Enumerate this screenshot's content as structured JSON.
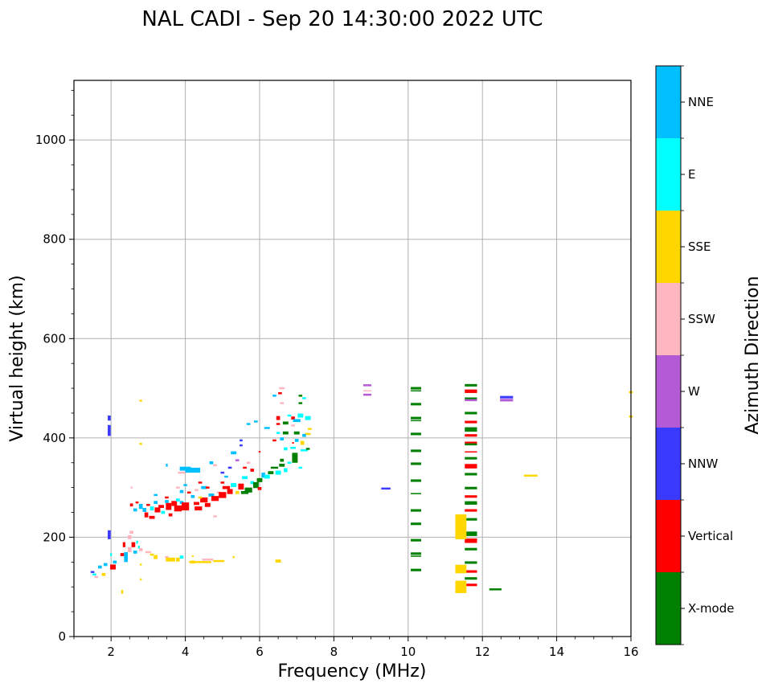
{
  "chart_data": {
    "type": "scatter",
    "title": "NAL CADI - Sep 20 14:30:00 2022 UTC",
    "xlabel": "Frequency (MHz)",
    "ylabel": "Virtual height (km)",
    "xlim": [
      1,
      16
    ],
    "ylim": [
      0,
      1120
    ],
    "xticks": [
      2,
      4,
      6,
      8,
      10,
      12,
      14,
      16
    ],
    "xtick_labels": [
      "2",
      "4",
      "6",
      "8",
      "10",
      "12",
      "14",
      "16"
    ],
    "yticks": [
      0,
      200,
      400,
      600,
      800,
      1000
    ],
    "ytick_labels": [
      "0",
      "200",
      "400",
      "600",
      "800",
      "1000"
    ],
    "grid": true,
    "colorbar": {
      "label": "Azimuth Direction",
      "categories": [
        "X-mode",
        "Vertical",
        "NNW",
        "W",
        "SSW",
        "SSE",
        "E",
        "NNE"
      ],
      "colors": [
        "#008000",
        "#ff0000",
        "#3a3aff",
        "#b55ad6",
        "#ffb6c1",
        "#ffd700",
        "#00ffff",
        "#00bfff"
      ]
    },
    "marks_format": "[frequency_MHz, virtual_height_km, category_index, freq_span_MHz, height_span_km]",
    "marks": [
      [
        1.5,
        130,
        2,
        0.1,
        4
      ],
      [
        1.55,
        125,
        6,
        0.1,
        4
      ],
      [
        1.6,
        120,
        4,
        0.1,
        4
      ],
      [
        1.7,
        140,
        7,
        0.1,
        6
      ],
      [
        1.8,
        125,
        5,
        0.1,
        6
      ],
      [
        1.85,
        145,
        7,
        0.1,
        6
      ],
      [
        2.05,
        140,
        1,
        0.15,
        10
      ],
      [
        2.1,
        150,
        7,
        0.1,
        6
      ],
      [
        2.0,
        165,
        6,
        0.05,
        6
      ],
      [
        1.95,
        205,
        2,
        0.08,
        18
      ],
      [
        1.95,
        415,
        2,
        0.08,
        22
      ],
      [
        1.95,
        440,
        2,
        0.08,
        10
      ],
      [
        2.35,
        185,
        1,
        0.07,
        10
      ],
      [
        2.3,
        165,
        1,
        0.1,
        6
      ],
      [
        2.4,
        160,
        7,
        0.1,
        20
      ],
      [
        2.5,
        175,
        4,
        0.1,
        10
      ],
      [
        2.5,
        200,
        4,
        0.1,
        8
      ],
      [
        2.55,
        210,
        4,
        0.1,
        6
      ],
      [
        2.6,
        185,
        1,
        0.1,
        10
      ],
      [
        2.65,
        170,
        7,
        0.1,
        6
      ],
      [
        2.7,
        190,
        6,
        0.05,
        6
      ],
      [
        2.75,
        180,
        6,
        0.05,
        6
      ],
      [
        2.8,
        175,
        4,
        0.1,
        6
      ],
      [
        2.3,
        90,
        5,
        0.05,
        8
      ],
      [
        2.8,
        115,
        5,
        0.05,
        4
      ],
      [
        2.8,
        145,
        5,
        0.05,
        4
      ],
      [
        2.8,
        475,
        5,
        0.07,
        4
      ],
      [
        2.8,
        388,
        5,
        0.07,
        4
      ],
      [
        2.55,
        300,
        4,
        0.05,
        4
      ],
      [
        3.0,
        170,
        4,
        0.15,
        4
      ],
      [
        3.1,
        165,
        5,
        0.1,
        4
      ],
      [
        3.2,
        160,
        5,
        0.1,
        8
      ],
      [
        3.5,
        160,
        4,
        0.1,
        4
      ],
      [
        3.6,
        155,
        5,
        0.25,
        8
      ],
      [
        3.9,
        160,
        6,
        0.1,
        6
      ],
      [
        3.8,
        155,
        5,
        0.1,
        8
      ],
      [
        4.2,
        150,
        5,
        0.1,
        6
      ],
      [
        4.4,
        150,
        5,
        0.6,
        4
      ],
      [
        4.6,
        155,
        4,
        0.3,
        4
      ],
      [
        4.9,
        152,
        5,
        0.3,
        4
      ],
      [
        5.3,
        160,
        5,
        0.05,
        4
      ],
      [
        6.5,
        152,
        5,
        0.15,
        6
      ],
      [
        4.2,
        162,
        5,
        0.05,
        3
      ],
      [
        2.55,
        265,
        1,
        0.08,
        6
      ],
      [
        2.65,
        255,
        7,
        0.1,
        6
      ],
      [
        2.7,
        270,
        1,
        0.08,
        4
      ],
      [
        2.8,
        262,
        7,
        0.1,
        10
      ],
      [
        2.9,
        255,
        7,
        0.1,
        8
      ],
      [
        2.95,
        245,
        1,
        0.1,
        10
      ],
      [
        3.0,
        265,
        1,
        0.1,
        4
      ],
      [
        3.1,
        240,
        1,
        0.15,
        6
      ],
      [
        3.1,
        258,
        6,
        0.1,
        8
      ],
      [
        3.2,
        270,
        7,
        0.1,
        6
      ],
      [
        3.25,
        255,
        1,
        0.15,
        10
      ],
      [
        3.35,
        262,
        1,
        0.15,
        6
      ],
      [
        3.4,
        250,
        6,
        0.1,
        6
      ],
      [
        3.5,
        272,
        7,
        0.1,
        6
      ],
      [
        3.55,
        262,
        1,
        0.15,
        14
      ],
      [
        3.6,
        245,
        1,
        0.1,
        6
      ],
      [
        3.7,
        268,
        1,
        0.15,
        10
      ],
      [
        3.8,
        258,
        1,
        0.2,
        12
      ],
      [
        3.8,
        275,
        6,
        0.1,
        6
      ],
      [
        3.9,
        270,
        7,
        0.1,
        6
      ],
      [
        4.0,
        262,
        1,
        0.2,
        16
      ],
      [
        4.1,
        290,
        1,
        0.1,
        4
      ],
      [
        4.2,
        282,
        7,
        0.1,
        6
      ],
      [
        4.3,
        268,
        1,
        0.15,
        6
      ],
      [
        4.35,
        258,
        1,
        0.2,
        8
      ],
      [
        4.5,
        275,
        1,
        0.2,
        10
      ],
      [
        4.6,
        265,
        1,
        0.15,
        8
      ],
      [
        4.7,
        285,
        7,
        0.15,
        6
      ],
      [
        4.8,
        278,
        1,
        0.2,
        10
      ],
      [
        4.9,
        290,
        4,
        0.1,
        4
      ],
      [
        5.0,
        285,
        1,
        0.2,
        12
      ],
      [
        5.1,
        300,
        1,
        0.2,
        6
      ],
      [
        5.2,
        292,
        1,
        0.15,
        10
      ],
      [
        5.3,
        305,
        6,
        0.15,
        8
      ],
      [
        5.4,
        290,
        5,
        0.1,
        6
      ],
      [
        5.5,
        302,
        1,
        0.15,
        12
      ],
      [
        5.6,
        290,
        0,
        0.2,
        6
      ],
      [
        5.7,
        295,
        0,
        0.2,
        10
      ],
      [
        5.8,
        310,
        6,
        0.1,
        6
      ],
      [
        5.9,
        305,
        0,
        0.15,
        12
      ],
      [
        6.0,
        315,
        0,
        0.15,
        8
      ],
      [
        6.0,
        298,
        1,
        0.1,
        6
      ],
      [
        6.1,
        325,
        7,
        0.1,
        10
      ],
      [
        6.2,
        322,
        6,
        0.15,
        8
      ],
      [
        6.3,
        330,
        0,
        0.15,
        6
      ],
      [
        6.4,
        340,
        0,
        0.2,
        4
      ],
      [
        6.5,
        330,
        6,
        0.15,
        8
      ],
      [
        6.6,
        345,
        0,
        0.15,
        6
      ],
      [
        6.6,
        355,
        0,
        0.1,
        6
      ],
      [
        6.7,
        335,
        6,
        0.1,
        8
      ],
      [
        6.8,
        350,
        6,
        0.1,
        4
      ],
      [
        6.95,
        360,
        0,
        0.15,
        20
      ],
      [
        7.1,
        340,
        6,
        0.1,
        4
      ],
      [
        6.9,
        380,
        6,
        0.15,
        4
      ],
      [
        7.0,
        395,
        7,
        0.1,
        6
      ],
      [
        7.15,
        390,
        5,
        0.1,
        8
      ],
      [
        7.2,
        375,
        6,
        0.2,
        4
      ],
      [
        7.3,
        378,
        0,
        0.1,
        4
      ],
      [
        3.5,
        345,
        7,
        0.05,
        6
      ],
      [
        4.0,
        338,
        7,
        0.3,
        8
      ],
      [
        4.2,
        335,
        7,
        0.4,
        10
      ],
      [
        3.9,
        330,
        4,
        0.2,
        4
      ],
      [
        4.7,
        350,
        7,
        0.1,
        6
      ],
      [
        4.8,
        345,
        4,
        0.1,
        4
      ],
      [
        5.0,
        330,
        2,
        0.1,
        4
      ],
      [
        5.2,
        340,
        2,
        0.1,
        4
      ],
      [
        5.3,
        370,
        7,
        0.15,
        6
      ],
      [
        5.5,
        385,
        2,
        0.08,
        4
      ],
      [
        5.5,
        395,
        2,
        0.08,
        4
      ],
      [
        5.7,
        428,
        7,
        0.1,
        4
      ],
      [
        5.9,
        433,
        7,
        0.1,
        4
      ],
      [
        6.2,
        420,
        7,
        0.15,
        4
      ],
      [
        6.4,
        485,
        7,
        0.1,
        4
      ],
      [
        6.5,
        440,
        1,
        0.1,
        8
      ],
      [
        6.5,
        410,
        6,
        0.1,
        4
      ],
      [
        6.6,
        500,
        4,
        0.15,
        4
      ],
      [
        6.55,
        490,
        1,
        0.1,
        4
      ],
      [
        6.6,
        470,
        4,
        0.1,
        4
      ],
      [
        6.5,
        428,
        1,
        0.1,
        4
      ],
      [
        6.4,
        395,
        1,
        0.1,
        4
      ],
      [
        6.6,
        398,
        7,
        0.1,
        6
      ],
      [
        6.7,
        430,
        0,
        0.15,
        6
      ],
      [
        6.7,
        410,
        0,
        0.15,
        6
      ],
      [
        6.8,
        445,
        6,
        0.1,
        4
      ],
      [
        6.9,
        440,
        1,
        0.1,
        6
      ],
      [
        6.9,
        425,
        4,
        0.1,
        4
      ],
      [
        7.0,
        435,
        7,
        0.2,
        6
      ],
      [
        7.1,
        445,
        6,
        0.15,
        8
      ],
      [
        7.1,
        485,
        0,
        0.1,
        4
      ],
      [
        7.1,
        470,
        0,
        0.1,
        4
      ],
      [
        7.2,
        480,
        6,
        0.1,
        4
      ],
      [
        7.3,
        440,
        6,
        0.15,
        8
      ],
      [
        7.35,
        418,
        5,
        0.1,
        4
      ],
      [
        7.3,
        408,
        5,
        0.15,
        4
      ],
      [
        7.2,
        405,
        7,
        0.1,
        6
      ],
      [
        7.0,
        410,
        0,
        0.15,
        6
      ],
      [
        6.7,
        378,
        6,
        0.1,
        6
      ],
      [
        6.9,
        390,
        1,
        0.05,
        3
      ],
      [
        5.6,
        340,
        1,
        0.1,
        4
      ],
      [
        5.1,
        322,
        7,
        0.1,
        4
      ],
      [
        4.5,
        300,
        7,
        0.15,
        6
      ],
      [
        4.4,
        310,
        1,
        0.1,
        4
      ],
      [
        4.0,
        305,
        7,
        0.1,
        4
      ],
      [
        4.3,
        295,
        4,
        0.1,
        4
      ],
      [
        3.8,
        300,
        4,
        0.1,
        4
      ],
      [
        5.7,
        350,
        4,
        0.1,
        4
      ],
      [
        6.0,
        372,
        1,
        0.05,
        3
      ],
      [
        5.4,
        355,
        3,
        0.1,
        4
      ],
      [
        4.8,
        242,
        4,
        0.1,
        4
      ],
      [
        3.2,
        285,
        7,
        0.1,
        4
      ],
      [
        3.5,
        280,
        1,
        0.1,
        4
      ],
      [
        3.9,
        292,
        7,
        0.1,
        6
      ],
      [
        4.4,
        280,
        5,
        0.1,
        4
      ],
      [
        4.6,
        300,
        1,
        0.1,
        4
      ],
      [
        5.0,
        310,
        1,
        0.1,
        4
      ],
      [
        5.6,
        320,
        6,
        0.15,
        6
      ],
      [
        5.8,
        335,
        1,
        0.1,
        6
      ],
      [
        8.9,
        506,
        3,
        0.22,
        4
      ],
      [
        8.9,
        495,
        4,
        0.22,
        2
      ],
      [
        8.9,
        487,
        3,
        0.22,
        4
      ],
      [
        9.4,
        298,
        2,
        0.25,
        4
      ],
      [
        10.21,
        500,
        0,
        0.28,
        5
      ],
      [
        10.21,
        495,
        0,
        0.28,
        2
      ],
      [
        10.21,
        468,
        0,
        0.28,
        5
      ],
      [
        10.21,
        440,
        0,
        0.28,
        5
      ],
      [
        10.21,
        435,
        0,
        0.28,
        2
      ],
      [
        10.21,
        408,
        0,
        0.28,
        5
      ],
      [
        10.21,
        374,
        0,
        0.28,
        5
      ],
      [
        10.21,
        348,
        0,
        0.28,
        5
      ],
      [
        10.21,
        314,
        0,
        0.28,
        5
      ],
      [
        10.21,
        288,
        0,
        0.28,
        2
      ],
      [
        10.21,
        254,
        0,
        0.28,
        5
      ],
      [
        10.21,
        227,
        0,
        0.28,
        5
      ],
      [
        10.21,
        194,
        0,
        0.28,
        5
      ],
      [
        10.21,
        167,
        0,
        0.28,
        5
      ],
      [
        10.21,
        162,
        0,
        0.28,
        2
      ],
      [
        10.21,
        134,
        0,
        0.28,
        5
      ],
      [
        11.69,
        506,
        0,
        0.33,
        5
      ],
      [
        11.69,
        494,
        1,
        0.33,
        7
      ],
      [
        11.69,
        479,
        0,
        0.33,
        5
      ],
      [
        11.69,
        476,
        3,
        0.33,
        4
      ],
      [
        11.69,
        450,
        0,
        0.33,
        5
      ],
      [
        11.69,
        432,
        1,
        0.33,
        5
      ],
      [
        11.69,
        417,
        0,
        0.33,
        9
      ],
      [
        11.69,
        405,
        1,
        0.33,
        5
      ],
      [
        11.69,
        390,
        1,
        0.33,
        5
      ],
      [
        11.69,
        387,
        0,
        0.33,
        4
      ],
      [
        11.69,
        372,
        1,
        0.33,
        2
      ],
      [
        11.69,
        359,
        0,
        0.33,
        5
      ],
      [
        11.69,
        343,
        1,
        0.33,
        9
      ],
      [
        11.69,
        327,
        0,
        0.33,
        5
      ],
      [
        11.69,
        299,
        0,
        0.33,
        5
      ],
      [
        11.69,
        282,
        1,
        0.33,
        5
      ],
      [
        11.69,
        269,
        0,
        0.33,
        7
      ],
      [
        11.69,
        254,
        1,
        0.33,
        5
      ],
      [
        11.69,
        236,
        0,
        0.33,
        5
      ],
      [
        11.69,
        207,
        0,
        0.33,
        9
      ],
      [
        11.69,
        193,
        1,
        0.33,
        9
      ],
      [
        11.69,
        176,
        0,
        0.33,
        5
      ],
      [
        11.69,
        149,
        0,
        0.33,
        5
      ],
      [
        11.69,
        131,
        1,
        0.33,
        5
      ],
      [
        11.69,
        117,
        0,
        0.33,
        5
      ],
      [
        11.69,
        104,
        1,
        0.33,
        5
      ],
      [
        11.42,
        221,
        5,
        0.3,
        50
      ],
      [
        11.42,
        136,
        5,
        0.3,
        17
      ],
      [
        11.42,
        100,
        5,
        0.3,
        25
      ],
      [
        12.65,
        482,
        2,
        0.35,
        5
      ],
      [
        12.65,
        476,
        3,
        0.35,
        5
      ],
      [
        13.3,
        324,
        5,
        0.37,
        4
      ],
      [
        12.35,
        95,
        0,
        0.33,
        4
      ],
      [
        16.0,
        492,
        5,
        0.1,
        4
      ],
      [
        16.0,
        443,
        5,
        0.1,
        4
      ]
    ]
  }
}
